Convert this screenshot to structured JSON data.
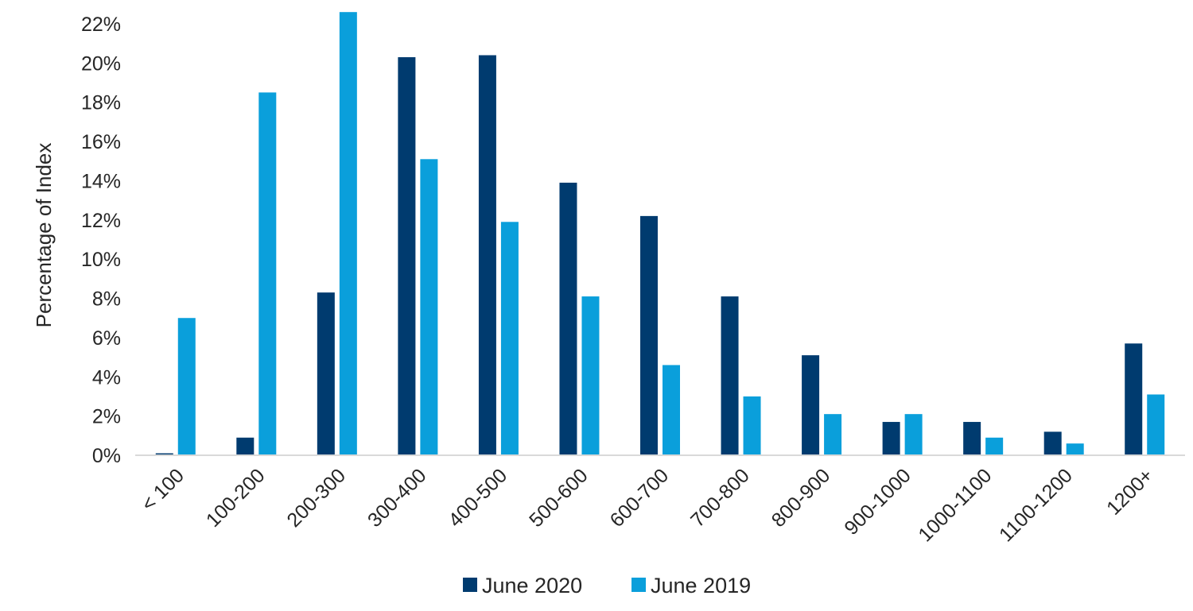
{
  "chart_data": {
    "type": "bar",
    "title": "",
    "xlabel": "",
    "ylabel": "Percentage of Index",
    "ylim": [
      0,
      22
    ],
    "yticks": [
      "0%",
      "2%",
      "4%",
      "6%",
      "8%",
      "10%",
      "12%",
      "14%",
      "16%",
      "18%",
      "20%",
      "22%"
    ],
    "grid": false,
    "legend_position": "bottom",
    "categories": [
      "< 100",
      "100-200",
      "200-300",
      "300-400",
      "400-500",
      "500-600",
      "600-700",
      "700-800",
      "800-900",
      "900-1000",
      "1000-1100",
      "1100-1200",
      "1200+"
    ],
    "series": [
      {
        "name": "June 2020",
        "color": "#003B6F",
        "values": [
          0.1,
          0.9,
          8.3,
          20.3,
          20.4,
          13.9,
          12.2,
          8.1,
          5.1,
          1.7,
          1.7,
          1.2,
          5.7
        ]
      },
      {
        "name": "June 2019",
        "color": "#0A9FDB",
        "values": [
          7.0,
          18.5,
          22.6,
          15.1,
          11.9,
          8.1,
          4.6,
          3.0,
          2.1,
          2.1,
          0.9,
          0.6,
          3.1
        ]
      }
    ]
  }
}
